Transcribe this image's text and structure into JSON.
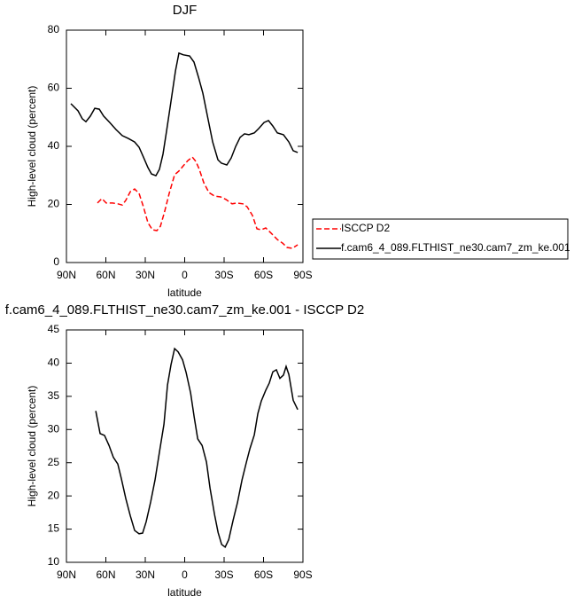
{
  "chart_data": [
    {
      "type": "line",
      "title": "DJF",
      "xlabel": "latitude",
      "ylabel": "High-level cloud (percent)",
      "xlim": [
        90,
        -90
      ],
      "xticks": [
        {
          "value": 90,
          "label": "90N"
        },
        {
          "value": 60,
          "label": "60N"
        },
        {
          "value": 30,
          "label": "30N"
        },
        0,
        {
          "value": -30,
          "label": "30S"
        },
        {
          "value": -60,
          "label": "60S"
        },
        {
          "value": -90,
          "label": "90S"
        }
      ],
      "ylim": [
        0,
        80
      ],
      "yticks": [
        0,
        20,
        40,
        60,
        80
      ],
      "legend": "right",
      "series": [
        {
          "name": "ISCCP D2",
          "color": "#ff0000",
          "line_style": "dashed",
          "x": [
            66.4,
            63.0,
            59.7,
            54.9,
            50.9,
            47.5,
            44.8,
            41.4,
            38.1,
            34.7,
            31.4,
            28.0,
            24.6,
            21.2,
            18.5,
            15.2,
            11.8,
            7.7,
            4.4,
            1.0,
            -2.4,
            -5.8,
            -8.5,
            -11.1,
            -14.5,
            -18.5,
            -22.6,
            -27.3,
            -31.4,
            -36.1,
            -39.5,
            -44.2,
            -47.5,
            -51.6,
            -55.0,
            -58.3,
            -61.7,
            -65.8,
            -70.5,
            -74.5,
            -77.9,
            -81.9,
            -86.0
          ],
          "values": [
            20.5,
            22.0,
            20.5,
            20.5,
            20.2,
            19.8,
            21.4,
            24.4,
            25.3,
            23.8,
            19.2,
            13.7,
            11.3,
            11.0,
            12.5,
            17.7,
            23.8,
            30.2,
            31.5,
            33.3,
            35.1,
            36.3,
            34.8,
            32.1,
            27.5,
            24.1,
            22.9,
            22.6,
            21.7,
            20.2,
            20.5,
            20.2,
            19.2,
            16.2,
            11.6,
            11.3,
            11.9,
            10.1,
            7.9,
            6.7,
            5.2,
            4.9,
            6.1
          ]
        },
        {
          "name": "f.cam6_4_089.FLTHIST_ne30.cam7_zm_ke.001",
          "color": "#000000",
          "line_style": "solid",
          "x": [
            86.6,
            81.2,
            77.9,
            75.2,
            71.8,
            68.4,
            65.0,
            61.7,
            57.0,
            52.3,
            47.5,
            42.8,
            38.1,
            34.7,
            31.4,
            28.0,
            25.3,
            21.9,
            19.2,
            16.5,
            13.8,
            10.4,
            7.0,
            4.4,
            1.0,
            -3.7,
            -7.1,
            -10.5,
            -13.8,
            -17.2,
            -21.3,
            -25.3,
            -28.0,
            -32.1,
            -35.4,
            -38.8,
            -42.2,
            -45.5,
            -48.9,
            -53.0,
            -56.3,
            -60.4,
            -63.8,
            -67.1,
            -70.5,
            -75.2,
            -79.3,
            -82.6,
            -86.0
          ],
          "values": [
            54.7,
            52.2,
            49.5,
            48.5,
            50.4,
            53.1,
            52.8,
            50.4,
            48.2,
            45.8,
            43.7,
            42.7,
            41.5,
            39.7,
            36.3,
            32.7,
            30.5,
            29.9,
            32.1,
            37.3,
            45.2,
            55.6,
            66.0,
            72.1,
            71.5,
            71.1,
            69.0,
            63.8,
            58.3,
            50.7,
            41.5,
            35.4,
            34.2,
            33.6,
            36.0,
            40.0,
            43.1,
            44.3,
            44.0,
            44.6,
            46.1,
            48.2,
            48.9,
            47.0,
            44.6,
            44.0,
            41.5,
            38.5,
            37.9
          ]
        }
      ]
    },
    {
      "type": "line",
      "title": "f.cam6_4_089.FLTHIST_ne30.cam7_zm_ke.001 - ISCCP D2",
      "xlabel": "latitude",
      "ylabel": "High-level cloud (percent)",
      "xlim": [
        90,
        -90
      ],
      "xticks": [
        {
          "value": 90,
          "label": "90N"
        },
        {
          "value": 60,
          "label": "60N"
        },
        {
          "value": 30,
          "label": "30N"
        },
        0,
        {
          "value": -30,
          "label": "30S"
        },
        {
          "value": -60,
          "label": "60S"
        },
        {
          "value": -90,
          "label": "90S"
        }
      ],
      "ylim": [
        10,
        45
      ],
      "yticks": [
        10,
        15,
        20,
        25,
        30,
        35,
        40,
        45
      ],
      "series": [
        {
          "color": "#000000",
          "line_style": "solid",
          "x": [
            67.7,
            64.4,
            61.0,
            57.6,
            54.3,
            50.9,
            48.2,
            44.8,
            41.4,
            38.1,
            34.7,
            32.0,
            29.3,
            25.9,
            22.6,
            19.2,
            15.8,
            13.1,
            10.4,
            7.7,
            5.0,
            1.6,
            -1.1,
            -4.5,
            -7.2,
            -9.9,
            -13.3,
            -16.6,
            -19.3,
            -22.7,
            -25.4,
            -28.1,
            -30.8,
            -33.5,
            -36.8,
            -40.2,
            -43.6,
            -47.0,
            -49.6,
            -53.0,
            -55.7,
            -58.3,
            -61.7,
            -64.4,
            -67.1,
            -69.8,
            -72.5,
            -75.2,
            -77.2,
            -79.3,
            -82.6,
            -86.0
          ],
          "values": [
            32.8,
            29.4,
            29.1,
            27.6,
            25.8,
            24.8,
            22.6,
            19.6,
            17.0,
            14.8,
            14.3,
            14.4,
            16.1,
            19.1,
            22.4,
            26.6,
            30.8,
            36.7,
            39.8,
            42.2,
            41.7,
            40.5,
            38.6,
            35.5,
            31.9,
            28.6,
            27.6,
            25.1,
            21.2,
            17.2,
            14.5,
            12.7,
            12.3,
            13.4,
            16.3,
            19.0,
            22.4,
            25.1,
            27.1,
            29.2,
            32.4,
            34.3,
            35.9,
            37.0,
            38.7,
            39.0,
            37.7,
            38.2,
            39.5,
            38.3,
            34.4,
            33.0
          ]
        }
      ]
    }
  ]
}
